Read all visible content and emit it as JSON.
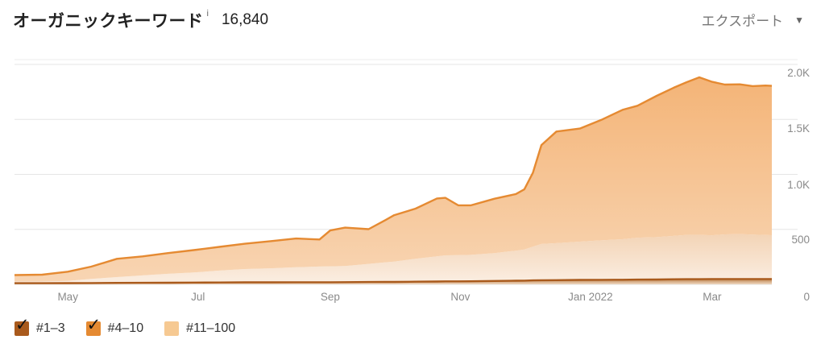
{
  "header": {
    "title": "オーガニックキーワード",
    "info_icon": "i",
    "total": "16,840",
    "export_label": "エクスポート"
  },
  "legend": [
    {
      "label": "#1–3",
      "color": "#a95a1c",
      "checked": true
    },
    {
      "label": "#4–10",
      "color": "#e58a32",
      "checked": true
    },
    {
      "label": "#11–100",
      "color": "#f6c992",
      "checked": false
    }
  ],
  "chart_data": {
    "type": "area",
    "stacked": true,
    "x": [
      "2021-04-15",
      "2021-04-28",
      "2021-05-10",
      "2021-05-21",
      "2021-06-02",
      "2021-06-14",
      "2021-06-26",
      "2021-07-08",
      "2021-07-20",
      "2021-08-01",
      "2021-08-13",
      "2021-08-25",
      "2021-09-05",
      "2021-09-10",
      "2021-09-17",
      "2021-09-28",
      "2021-10-06",
      "2021-10-10",
      "2021-10-20",
      "2021-10-30",
      "2021-11-03",
      "2021-11-09",
      "2021-11-15",
      "2021-11-26",
      "2021-12-06",
      "2021-12-10",
      "2021-12-14",
      "2021-12-18",
      "2021-12-25",
      "2022-01-05",
      "2022-01-15",
      "2022-01-25",
      "2022-02-01",
      "2022-02-10",
      "2022-02-18",
      "2022-02-24",
      "2022-03-02",
      "2022-03-08",
      "2022-03-14",
      "2022-03-21",
      "2022-03-27",
      "2022-04-02",
      "2022-04-05"
    ],
    "x_tick_labels": [
      "May",
      "Jul",
      "Sep",
      "Nov",
      "Jan 2022",
      "Mar"
    ],
    "y_tick_labels": [
      "2.0K",
      "1.5K",
      "1.0K",
      "500",
      "0"
    ],
    "ylim": [
      0,
      2000
    ],
    "y_axis_position": "right",
    "grid": true,
    "legend_position": "bottom-left",
    "series": [
      {
        "name": "#1–3",
        "values": [
          10,
          10,
          11,
          12,
          13,
          14,
          15,
          16,
          17,
          18,
          18,
          19,
          19,
          19,
          20,
          21,
          22,
          22,
          24,
          26,
          27,
          27,
          28,
          31,
          33,
          34,
          36,
          37,
          38,
          40,
          41,
          42,
          43,
          44,
          46,
          47,
          47,
          48,
          48,
          48,
          48,
          48,
          48
        ]
      },
      {
        "name": "#4–10",
        "values": [
          16,
          16,
          20,
          37,
          53,
          67,
          81,
          92,
          108,
          121,
          128,
          136,
          143,
          145,
          147,
          165,
          179,
          185,
          209,
          229,
          237,
          239,
          240,
          253,
          273,
          283,
          306,
          330,
          336,
          348,
          359,
          368,
          381,
          385,
          394,
          403,
          403,
          398,
          406,
          409,
          404,
          401,
          399
        ]
      },
      {
        "name": "#11–100",
        "values": [
          58,
          62,
          84,
          112,
          166,
          173,
          188,
          203,
          216,
          230,
          247,
          262,
          246,
          326,
          349,
          316,
          384,
          422,
          456,
          526,
          523,
          453,
          451,
          495,
          515,
          547,
          672,
          900,
          1016,
          1029,
          1095,
          1177,
          1200,
          1285,
          1348,
          1388,
          1433,
          1396,
          1363,
          1362,
          1351,
          1359,
          1358
        ]
      }
    ]
  }
}
